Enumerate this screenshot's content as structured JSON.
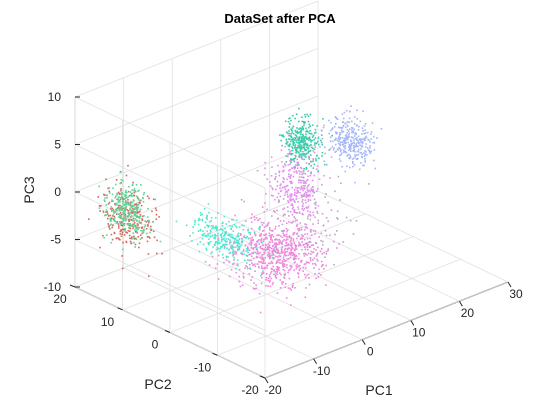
{
  "chart_data": {
    "type": "scatter",
    "title": "DataSet after PCA",
    "xlabel": "PC1",
    "ylabel": "PC2",
    "zlabel": "PC3",
    "xlim": [
      -20,
      30
    ],
    "ylim": [
      -20,
      20
    ],
    "zlim": [
      -10,
      10
    ],
    "xticks": [
      "-20",
      "-10",
      "0",
      "10",
      "20",
      "30"
    ],
    "yticks": [
      "-20",
      "-10",
      "0",
      "10",
      "20"
    ],
    "zticks": [
      "-10",
      "-5",
      "0",
      "5",
      "10"
    ],
    "grid": true,
    "view": "3d",
    "clusters": [
      {
        "color": "#d2695a",
        "center": [
          -14.0,
          15.0,
          -2.8
        ],
        "spread": [
          1.5,
          2.5,
          1.6
        ],
        "n": 260
      },
      {
        "color": "#5fd49a",
        "center": [
          -13.5,
          16.0,
          -2.4
        ],
        "spread": [
          1.2,
          2.0,
          1.3
        ],
        "n": 280
      },
      {
        "color": "#4fe7d0",
        "center": [
          -8.5,
          0.0,
          -2.5
        ],
        "spread": [
          1.3,
          3.5,
          0.9
        ],
        "n": 300
      },
      {
        "color": "#ee88dd",
        "center": [
          -1.5,
          -4.0,
          -4.5
        ],
        "spread": [
          3.5,
          3.0,
          1.5
        ],
        "n": 650
      },
      {
        "color": "#e68ef0",
        "center": [
          7.0,
          1.0,
          -0.4
        ],
        "spread": [
          1.5,
          2.0,
          2.0
        ],
        "n": 300
      },
      {
        "color": "#3ecca8",
        "center": [
          15.0,
          8.0,
          1.0
        ],
        "spread": [
          1.2,
          1.4,
          1.2
        ],
        "n": 320
      },
      {
        "color": "#a6b7f8",
        "center": [
          21.0,
          4.0,
          0.8
        ],
        "spread": [
          1.5,
          2.0,
          1.2
        ],
        "n": 320
      },
      {
        "color": "#b8a9c8",
        "center": [
          5.0,
          -2.0,
          -3.0
        ],
        "spread": [
          4.0,
          3.5,
          2.5
        ],
        "n": 120
      }
    ]
  }
}
